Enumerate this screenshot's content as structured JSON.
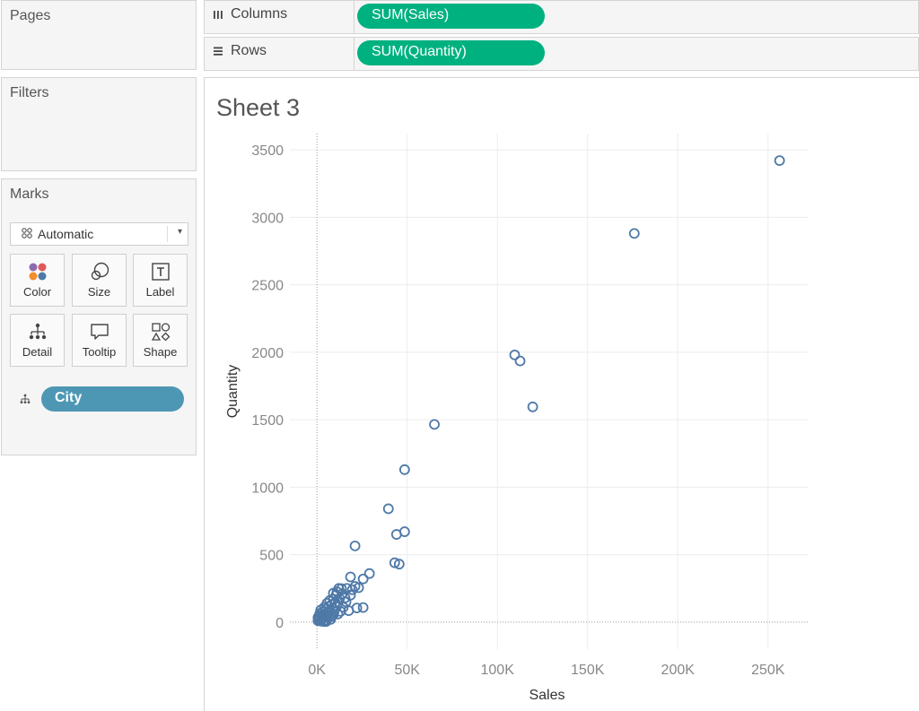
{
  "cards": {
    "pages": {
      "title": "Pages"
    },
    "filters": {
      "title": "Filters"
    },
    "marks": {
      "title": "Marks",
      "dropdown": {
        "value": "Automatic"
      },
      "buttons": [
        {
          "label": "Color",
          "icon": "color-dots-icon"
        },
        {
          "label": "Size",
          "icon": "size-circles-icon"
        },
        {
          "label": "Label",
          "icon": "text-label-icon"
        },
        {
          "label": "Detail",
          "icon": "detail-hierarchy-icon"
        },
        {
          "label": "Tooltip",
          "icon": "speech-bubble-icon"
        },
        {
          "label": "Shape",
          "icon": "shapes-icon"
        }
      ],
      "detail_field": {
        "label": "City"
      }
    }
  },
  "shelves": {
    "columns": {
      "label": "Columns",
      "field": "SUM(Sales)"
    },
    "rows": {
      "label": "Rows",
      "field": "SUM(Quantity)"
    }
  },
  "colors": {
    "measure_pill": "#00b180",
    "dimension_pill": "#4e97b4",
    "mark_stroke": "#4e79a7"
  },
  "sheet": {
    "title": "Sheet 3"
  },
  "chart_data": {
    "type": "scatter",
    "xlabel": "Sales",
    "ylabel": "Quantity",
    "xlim": [
      -15000,
      272000
    ],
    "ylim": [
      -200,
      3620
    ],
    "x_ticks": [
      {
        "value": 0,
        "label": "0K"
      },
      {
        "value": 50000,
        "label": "50K"
      },
      {
        "value": 100000,
        "label": "100K"
      },
      {
        "value": 150000,
        "label": "150K"
      },
      {
        "value": 200000,
        "label": "200K"
      },
      {
        "value": 250000,
        "label": "250K"
      }
    ],
    "y_ticks": [
      {
        "value": 0,
        "label": "0"
      },
      {
        "value": 500,
        "label": "500"
      },
      {
        "value": 1000,
        "label": "1000"
      },
      {
        "value": 1500,
        "label": "1500"
      },
      {
        "value": 2000,
        "label": "2000"
      },
      {
        "value": 2500,
        "label": "2500"
      },
      {
        "value": 3000,
        "label": "3000"
      },
      {
        "value": 3500,
        "label": "3500"
      }
    ],
    "grid": true,
    "marker": "open-circle",
    "points": [
      [
        256400,
        3420
      ],
      [
        175900,
        2880
      ],
      [
        109600,
        1980
      ],
      [
        112600,
        1935
      ],
      [
        119600,
        1595
      ],
      [
        65100,
        1465
      ],
      [
        48600,
        1130
      ],
      [
        39600,
        840
      ],
      [
        48600,
        670
      ],
      [
        44100,
        650
      ],
      [
        21100,
        565
      ],
      [
        43100,
        440
      ],
      [
        45600,
        430
      ],
      [
        29100,
        360
      ],
      [
        25600,
        320
      ],
      [
        18600,
        335
      ],
      [
        21100,
        265
      ],
      [
        23100,
        255
      ],
      [
        16600,
        250
      ],
      [
        13600,
        248
      ],
      [
        12100,
        250
      ],
      [
        14100,
        210
      ],
      [
        18600,
        200
      ],
      [
        10600,
        200
      ],
      [
        9100,
        170
      ],
      [
        7100,
        160
      ],
      [
        5600,
        140
      ],
      [
        8100,
        130
      ],
      [
        11100,
        120
      ],
      [
        14600,
        110
      ],
      [
        22100,
        105
      ],
      [
        25600,
        108
      ],
      [
        17600,
        85
      ],
      [
        9600,
        80
      ],
      [
        6100,
        70
      ],
      [
        4100,
        60
      ],
      [
        2600,
        50
      ],
      [
        3600,
        40
      ],
      [
        1600,
        30
      ],
      [
        1100,
        20
      ],
      [
        600,
        10
      ],
      [
        2100,
        8
      ],
      [
        4600,
        15
      ],
      [
        7600,
        20
      ],
      [
        6600,
        45
      ],
      [
        9100,
        55
      ],
      [
        5100,
        95
      ],
      [
        3100,
        75
      ],
      [
        1600,
        65
      ],
      [
        11600,
        60
      ],
      [
        13100,
        80
      ],
      [
        8600,
        100
      ],
      [
        10100,
        145
      ],
      [
        12600,
        175
      ],
      [
        15600,
        180
      ],
      [
        4100,
        110
      ],
      [
        6600,
        115
      ],
      [
        3100,
        25
      ],
      [
        5600,
        35
      ],
      [
        8100,
        40
      ],
      [
        2100,
        90
      ],
      [
        1100,
        45
      ],
      [
        600,
        35
      ],
      [
        7100,
        85
      ],
      [
        16100,
        150
      ],
      [
        11100,
        225
      ],
      [
        9100,
        215
      ],
      [
        19600,
        240
      ],
      [
        3600,
        5
      ],
      [
        5100,
        5
      ]
    ]
  }
}
